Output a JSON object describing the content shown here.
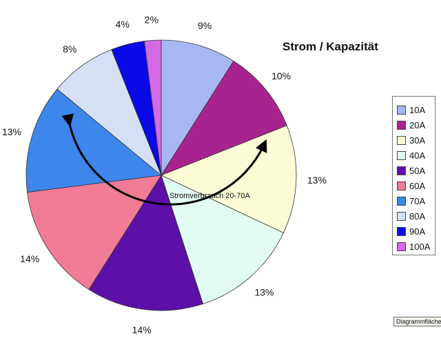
{
  "chart_data": {
    "type": "pie",
    "title": "Strom / Kapazität",
    "start_angle_deg": 0,
    "direction": "clockwise",
    "categories": [
      "10A",
      "20A",
      "30A",
      "40A",
      "50A",
      "60A",
      "70A",
      "80A",
      "90A",
      "100A"
    ],
    "values": [
      9,
      10,
      13,
      13,
      14,
      14,
      13,
      8,
      4,
      2
    ],
    "value_labels": [
      "9%",
      "10%",
      "13%",
      "13%",
      "14%",
      "14%",
      "13%",
      "8%",
      "4%",
      "2%"
    ],
    "colors": [
      "#a8b6f2",
      "#a8238f",
      "#fbfbd6",
      "#e2fbf2",
      "#5c10a8",
      "#f27b96",
      "#3c86ec",
      "#d6e0f5",
      "#0a0ae6",
      "#d46ae6"
    ],
    "legend_position": "right",
    "annotation": {
      "text": "Stromverbrauch 20-70A",
      "arrow": "curved double-headed arrow spanning the 20A to 70A slices"
    }
  },
  "ui": {
    "area_label": "Diagrammfläche"
  }
}
